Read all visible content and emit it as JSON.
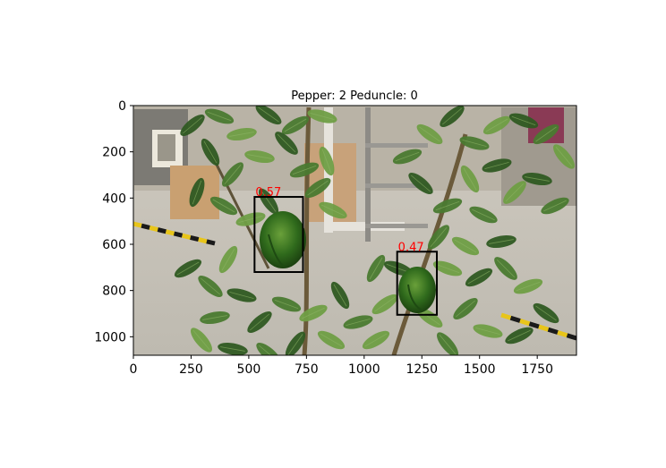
{
  "title": "Pepper: 2 Peduncle: 0",
  "image": {
    "width": 1920,
    "height": 1080,
    "description_icon": "photo-greenhouse-plant"
  },
  "x_ticks": [
    "0",
    "250",
    "500",
    "750",
    "1000",
    "1250",
    "1500",
    "1750"
  ],
  "y_ticks": [
    "0",
    "200",
    "400",
    "600",
    "800",
    "1000"
  ],
  "detections": [
    {
      "label": "0.57",
      "x1": 525,
      "y1": 395,
      "x2": 735,
      "y2": 720
    },
    {
      "label": "0.47",
      "x1": 1143,
      "y1": 632,
      "x2": 1315,
      "y2": 905
    }
  ],
  "colors": {
    "box": "#000000",
    "label": "#ff0000",
    "stripe_yellow": "#e8c51a",
    "stripe_black": "#1a1a1a",
    "leaf_dark": "#2f5a22",
    "leaf_mid": "#4a7a30",
    "leaf_light": "#6f9e45",
    "floor": "#c9c6bd",
    "wall": "#bfb9ad"
  }
}
